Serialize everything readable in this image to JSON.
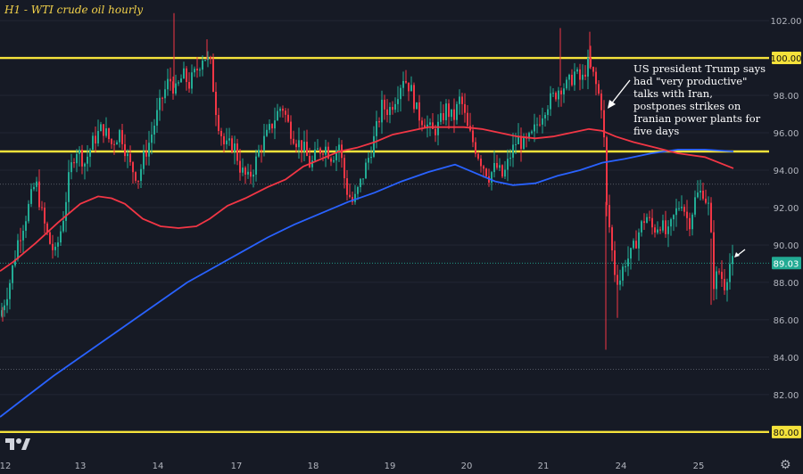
{
  "colors": {
    "background": "#161a25",
    "up": "#22ab94",
    "down": "#f23645",
    "ma_slow": "#2962ff",
    "ma_fast": "#f23645",
    "level": "#f5e23b",
    "price_badge": "#22ab94"
  },
  "title": "H1 - WTI crude oil hourly",
  "annotation": "US president Trump says had \"very productive\" talks with Iran, postpones strikes on Iranian power plants for five days",
  "last_price_label": "89.03",
  "icons": {
    "brand": "tradingview-logo-icon",
    "settings": "gear-icon",
    "pointer": "arrow-icon"
  },
  "chart_data": {
    "type": "candlestick",
    "title": "H1 - WTI crude oil hourly",
    "x_tick_labels": [
      "12",
      "13",
      "14",
      "17",
      "18",
      "19",
      "20",
      "21",
      "24",
      "25"
    ],
    "y_tick_labels": [
      "80.00",
      "82.00",
      "84.00",
      "86.00",
      "88.00",
      "90.00",
      "92.00",
      "94.00",
      "96.00",
      "98.00",
      "100.00",
      "102.00"
    ],
    "ylim": [
      78.8,
      103.1
    ],
    "horizontal_levels": [
      {
        "value": 100.0,
        "label": "100.00"
      },
      {
        "value": 95.0,
        "label": "95.00"
      },
      {
        "value": 80.0,
        "label": "80.00"
      }
    ],
    "dotted_levels": [
      93.25,
      83.35
    ],
    "last_price": 89.03,
    "moving_average_fast": [
      [
        0,
        88.6
      ],
      [
        15,
        89.1
      ],
      [
        40,
        90.1
      ],
      [
        65,
        91.2
      ],
      [
        90,
        92.2
      ],
      [
        110,
        92.6
      ],
      [
        125,
        92.5
      ],
      [
        140,
        92.2
      ],
      [
        160,
        91.4
      ],
      [
        180,
        91.0
      ],
      [
        200,
        90.9
      ],
      [
        220,
        91.0
      ],
      [
        235,
        91.4
      ],
      [
        255,
        92.1
      ],
      [
        275,
        92.5
      ],
      [
        300,
        93.1
      ],
      [
        320,
        93.5
      ],
      [
        340,
        94.2
      ],
      [
        360,
        94.6
      ],
      [
        380,
        95.0
      ],
      [
        400,
        95.2
      ],
      [
        420,
        95.5
      ],
      [
        440,
        95.9
      ],
      [
        460,
        96.1
      ],
      [
        480,
        96.3
      ],
      [
        500,
        96.3
      ],
      [
        520,
        96.3
      ],
      [
        540,
        96.2
      ],
      [
        560,
        96.0
      ],
      [
        580,
        95.8
      ],
      [
        600,
        95.7
      ],
      [
        620,
        95.8
      ],
      [
        640,
        96.0
      ],
      [
        660,
        96.2
      ],
      [
        675,
        96.1
      ],
      [
        690,
        95.8
      ],
      [
        710,
        95.5
      ],
      [
        735,
        95.2
      ],
      [
        760,
        94.9
      ],
      [
        790,
        94.7
      ],
      [
        822,
        94.1
      ]
    ],
    "moving_average_slow": [
      [
        0,
        80.8
      ],
      [
        30,
        81.9
      ],
      [
        60,
        83.0
      ],
      [
        90,
        84.0
      ],
      [
        120,
        85.0
      ],
      [
        150,
        86.0
      ],
      [
        180,
        87.0
      ],
      [
        210,
        88.0
      ],
      [
        240,
        88.8
      ],
      [
        270,
        89.6
      ],
      [
        300,
        90.4
      ],
      [
        330,
        91.1
      ],
      [
        360,
        91.7
      ],
      [
        390,
        92.3
      ],
      [
        420,
        92.8
      ],
      [
        450,
        93.4
      ],
      [
        480,
        93.9
      ],
      [
        510,
        94.3
      ],
      [
        530,
        93.9
      ],
      [
        555,
        93.4
      ],
      [
        575,
        93.2
      ],
      [
        600,
        93.3
      ],
      [
        625,
        93.7
      ],
      [
        650,
        94.0
      ],
      [
        675,
        94.4
      ],
      [
        700,
        94.6
      ],
      [
        730,
        94.9
      ],
      [
        760,
        95.1
      ],
      [
        790,
        95.1
      ],
      [
        822,
        95.0
      ]
    ],
    "candle_path": [
      [
        0,
        86.2
      ],
      [
        10,
        87.8
      ],
      [
        20,
        90.2
      ],
      [
        30,
        91.7
      ],
      [
        40,
        93.4
      ],
      [
        48,
        91.4
      ],
      [
        55,
        90.2
      ],
      [
        62,
        89.5
      ],
      [
        70,
        91.2
      ],
      [
        78,
        93.8
      ],
      [
        85,
        95.2
      ],
      [
        95,
        94.4
      ],
      [
        105,
        95.6
      ],
      [
        115,
        96.3
      ],
      [
        125,
        95.4
      ],
      [
        135,
        96.1
      ],
      [
        145,
        94.3
      ],
      [
        155,
        93.6
      ],
      [
        162,
        94.8
      ],
      [
        168,
        95.6
      ],
      [
        175,
        96.8
      ],
      [
        182,
        97.9
      ],
      [
        190,
        98.9
      ],
      [
        197,
        98.2
      ],
      [
        205,
        99.1
      ],
      [
        212,
        98.6
      ],
      [
        220,
        99.3
      ],
      [
        228,
        100.2
      ],
      [
        236,
        99.6
      ],
      [
        243,
        96.9
      ],
      [
        252,
        95.2
      ],
      [
        262,
        95.4
      ],
      [
        270,
        94.0
      ],
      [
        278,
        93.5
      ],
      [
        285,
        94.2
      ],
      [
        292,
        95.3
      ],
      [
        300,
        95.9
      ],
      [
        308,
        96.8
      ],
      [
        316,
        97.5
      ],
      [
        324,
        96.3
      ],
      [
        332,
        95.6
      ],
      [
        340,
        95.2
      ],
      [
        348,
        94.2
      ],
      [
        356,
        95.0
      ],
      [
        364,
        95.3
      ],
      [
        372,
        94.7
      ],
      [
        380,
        95.4
      ],
      [
        388,
        93.0
      ],
      [
        396,
        92.2
      ],
      [
        404,
        93.3
      ],
      [
        412,
        94.5
      ],
      [
        420,
        95.8
      ],
      [
        428,
        97.4
      ],
      [
        436,
        97.2
      ],
      [
        444,
        98.0
      ],
      [
        452,
        99.0
      ],
      [
        460,
        98.4
      ],
      [
        468,
        97.0
      ],
      [
        476,
        96.6
      ],
      [
        484,
        96.0
      ],
      [
        492,
        96.4
      ],
      [
        500,
        97.3
      ],
      [
        508,
        96.7
      ],
      [
        516,
        97.9
      ],
      [
        524,
        96.2
      ],
      [
        532,
        95.3
      ],
      [
        540,
        94.4
      ],
      [
        548,
        93.7
      ],
      [
        556,
        94.2
      ],
      [
        564,
        93.6
      ],
      [
        572,
        94.8
      ],
      [
        580,
        95.7
      ],
      [
        588,
        95.3
      ],
      [
        596,
        95.8
      ],
      [
        604,
        96.7
      ],
      [
        612,
        97.5
      ],
      [
        620,
        97.9
      ],
      [
        628,
        98.5
      ],
      [
        636,
        98.5
      ],
      [
        644,
        99.2
      ],
      [
        652,
        98.7
      ],
      [
        658,
        99.7
      ],
      [
        664,
        99.2
      ],
      [
        670,
        98.2
      ],
      [
        676,
        97.2
      ],
      [
        679,
        92.3
      ],
      [
        684,
        90.6
      ],
      [
        688,
        88.7
      ],
      [
        694,
        88.0
      ],
      [
        700,
        89.1
      ],
      [
        708,
        89.5
      ],
      [
        716,
        90.7
      ],
      [
        724,
        91.6
      ],
      [
        732,
        90.8
      ],
      [
        740,
        91.2
      ],
      [
        748,
        90.4
      ],
      [
        756,
        91.6
      ],
      [
        764,
        92.4
      ],
      [
        772,
        91.1
      ],
      [
        780,
        92.6
      ],
      [
        788,
        92.9
      ],
      [
        795,
        91.9
      ],
      [
        800,
        88.0
      ],
      [
        806,
        88.6
      ],
      [
        812,
        87.9
      ],
      [
        818,
        89.0
      ],
      [
        822,
        89.03
      ]
    ],
    "candle_wicks": [
      {
        "x": 195,
        "high": 102.4
      },
      {
        "x": 232,
        "high": 101.0
      },
      {
        "x": 628,
        "high": 101.6
      },
      {
        "x": 661,
        "high": 101.4
      },
      {
        "x": 679,
        "low": 84.4
      },
      {
        "x": 692,
        "low": 86.1
      },
      {
        "x": 797,
        "low": 86.8
      },
      {
        "x": 3,
        "low": 85.9
      }
    ]
  }
}
